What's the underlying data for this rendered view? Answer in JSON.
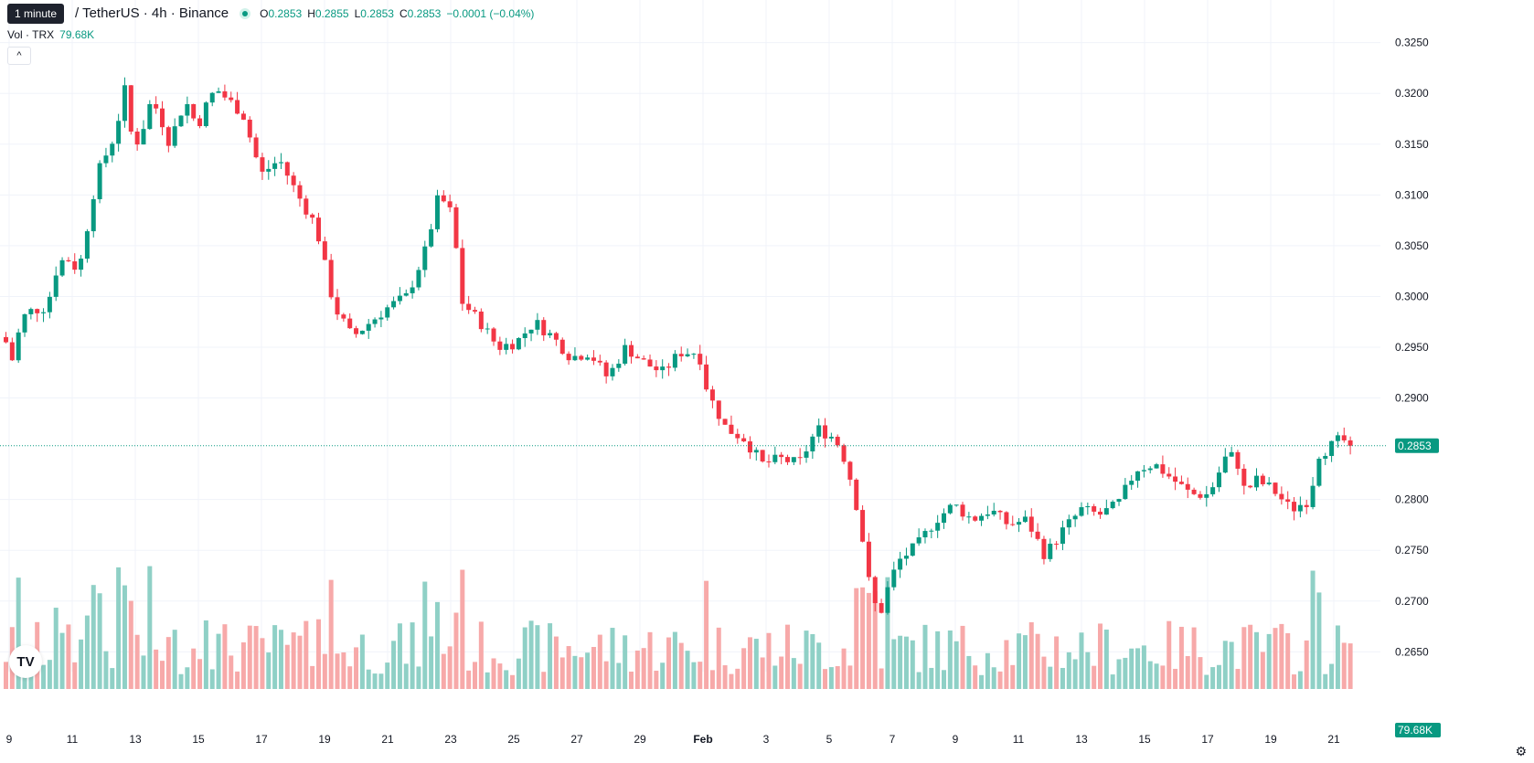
{
  "header": {
    "tooltip": "1 minute",
    "symbol": "/ TetherUS · 4h · Binance",
    "ohlc": [
      {
        "k": "O",
        "v": "0.2853"
      },
      {
        "k": "H",
        "v": "0.2855"
      },
      {
        "k": "L",
        "v": "0.2853"
      },
      {
        "k": "C",
        "v": "0.2853"
      }
    ],
    "change": "−0.0001 (−0.04%)",
    "vol_label": "Vol · TRX",
    "vol_value": "79.68K",
    "collapse_icon": "chevron-up-icon"
  },
  "colors": {
    "up": "#089981",
    "down": "#f23645",
    "up_volume": "#8fd0c6",
    "down_volume": "#f7a9a9",
    "grid": "#f0f3fa"
  },
  "chart_data": {
    "type": "candlestick",
    "interval": "4h",
    "y_ticks": [
      "0.3250",
      "0.3200",
      "0.3150",
      "0.3100",
      "0.3050",
      "0.3000",
      "0.2950",
      "0.2900",
      "0.2800",
      "0.2750",
      "0.2700",
      "0.2650"
    ],
    "x_ticks": [
      "9",
      "11",
      "13",
      "15",
      "17",
      "19",
      "21",
      "23",
      "25",
      "27",
      "29",
      "Feb",
      "3",
      "5",
      "7",
      "9",
      "11",
      "13",
      "15",
      "17",
      "19",
      "21"
    ],
    "ylim": [
      0.2635,
      0.3265
    ],
    "last_price": "0.2853",
    "last_volume": "79.68K",
    "close_path": [
      [
        0,
        0.2955
      ],
      [
        0.02,
        0.293
      ],
      [
        0.03,
        0.2975
      ],
      [
        0.05,
        0.2985
      ],
      [
        0.09,
        0.299
      ],
      [
        0.11,
        0.3025
      ],
      [
        0.13,
        0.304
      ],
      [
        0.16,
        0.3025
      ],
      [
        0.2,
        0.312
      ],
      [
        0.24,
        0.316
      ],
      [
        0.26,
        0.3205
      ],
      [
        0.28,
        0.3145
      ],
      [
        0.3,
        0.3165
      ],
      [
        0.32,
        0.3195
      ],
      [
        0.34,
        0.3175
      ],
      [
        0.36,
        0.315
      ],
      [
        0.38,
        0.318
      ],
      [
        0.4,
        0.319
      ],
      [
        0.42,
        0.3165
      ],
      [
        0.43,
        0.318
      ],
      [
        0.46,
        0.3205
      ],
      [
        0.52,
        0.318
      ],
      [
        0.56,
        0.312
      ],
      [
        0.6,
        0.3135
      ],
      [
        0.64,
        0.31
      ],
      [
        0.68,
        0.307
      ],
      [
        0.72,
        0.299
      ],
      [
        0.76,
        0.296
      ],
      [
        0.8,
        0.2975
      ],
      [
        0.84,
        0.299
      ],
      [
        0.88,
        0.3
      ],
      [
        0.92,
        0.3045
      ],
      [
        0.95,
        0.31
      ],
      [
        0.98,
        0.308
      ],
      [
        1.0,
        0.2995
      ],
      [
        1.04,
        0.2975
      ],
      [
        1.08,
        0.295
      ],
      [
        1.12,
        0.2955
      ],
      [
        1.16,
        0.2975
      ],
      [
        1.2,
        0.296
      ],
      [
        1.24,
        0.294
      ],
      [
        1.28,
        0.2945
      ],
      [
        1.32,
        0.292
      ],
      [
        1.36,
        0.295
      ],
      [
        1.4,
        0.2935
      ],
      [
        1.44,
        0.2925
      ],
      [
        1.48,
        0.2945
      ],
      [
        1.52,
        0.2945
      ],
      [
        1.54,
        0.2905
      ],
      [
        1.58,
        0.287
      ],
      [
        1.62,
        0.286
      ],
      [
        1.66,
        0.2835
      ],
      [
        1.7,
        0.284
      ],
      [
        1.74,
        0.2835
      ],
      [
        1.78,
        0.287
      ],
      [
        1.82,
        0.286
      ],
      [
        1.84,
        0.284
      ],
      [
        1.86,
        0.281
      ],
      [
        1.88,
        0.276
      ],
      [
        1.9,
        0.27
      ],
      [
        1.92,
        0.269
      ],
      [
        1.94,
        0.272
      ],
      [
        1.96,
        0.274
      ],
      [
        2.0,
        0.2755
      ],
      [
        2.04,
        0.278
      ],
      [
        2.08,
        0.2795
      ],
      [
        2.12,
        0.278
      ],
      [
        2.16,
        0.279
      ],
      [
        2.2,
        0.2775
      ],
      [
        2.24,
        0.278
      ],
      [
        2.28,
        0.2745
      ],
      [
        2.32,
        0.277
      ],
      [
        2.36,
        0.279
      ],
      [
        2.4,
        0.2785
      ],
      [
        2.44,
        0.2795
      ],
      [
        2.48,
        0.283
      ],
      [
        2.52,
        0.2835
      ],
      [
        2.56,
        0.282
      ],
      [
        2.6,
        0.2805
      ],
      [
        2.64,
        0.2805
      ],
      [
        2.68,
        0.2845
      ],
      [
        2.7,
        0.284
      ],
      [
        2.72,
        0.2805
      ],
      [
        2.74,
        0.282
      ],
      [
        2.78,
        0.281
      ],
      [
        2.82,
        0.279
      ],
      [
        2.86,
        0.28
      ],
      [
        2.88,
        0.2845
      ],
      [
        2.9,
        0.285
      ],
      [
        2.93,
        0.286
      ],
      [
        2.95,
        0.2853
      ]
    ]
  }
}
